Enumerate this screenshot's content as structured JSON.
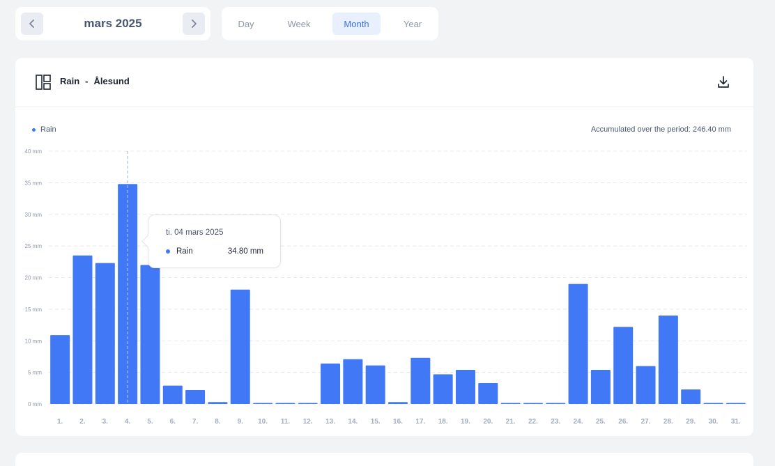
{
  "nav": {
    "month_label": "mars 2025",
    "prev_icon": "chevron-left-icon",
    "next_icon": "chevron-right-icon"
  },
  "tabs": [
    {
      "label": "Day",
      "active": false
    },
    {
      "label": "Week",
      "active": false
    },
    {
      "label": "Month",
      "active": true
    },
    {
      "label": "Year",
      "active": false
    }
  ],
  "card": {
    "icon": "layout-icon",
    "title_metric": "Rain",
    "title_separator": "-",
    "title_location": "Ålesund",
    "download_icon": "download-icon",
    "legend_label": "Rain",
    "accumulated": "Accumulated over the period: 246.40 mm"
  },
  "tooltip": {
    "date": "ti. 04 mars 2025",
    "series": "Rain",
    "value": "34.80 mm"
  },
  "colors": {
    "bar": "#4178f5",
    "accent": "#3d72e0",
    "background": "#f2f3f5"
  },
  "chart_data": {
    "type": "bar",
    "categories": [
      "1.",
      "2.",
      "3.",
      "4.",
      "5.",
      "6.",
      "7.",
      "8.",
      "9.",
      "10.",
      "11.",
      "12.",
      "13.",
      "14.",
      "15.",
      "16.",
      "17.",
      "18.",
      "19.",
      "20.",
      "21.",
      "22.",
      "23.",
      "24.",
      "25.",
      "26.",
      "27.",
      "28.",
      "29.",
      "30.",
      "31."
    ],
    "series": [
      {
        "name": "Rain",
        "values": [
          10.9,
          23.5,
          22.3,
          34.8,
          22.0,
          2.9,
          2.2,
          0.3,
          18.1,
          0.1,
          0.1,
          0.1,
          6.4,
          7.1,
          6.1,
          0.3,
          7.3,
          4.7,
          5.4,
          3.3,
          0.1,
          0.1,
          0.1,
          19.0,
          5.4,
          12.2,
          6.0,
          14.0,
          2.3,
          0.1,
          0.1
        ]
      }
    ],
    "yticks": [
      "0 mm",
      "5 mm",
      "10 mm",
      "15 mm",
      "20 mm",
      "25 mm",
      "30 mm",
      "35 mm",
      "40 mm"
    ],
    "ylim": [
      0,
      40
    ],
    "grid": true,
    "legend": "top-left",
    "highlight_index": 3
  }
}
